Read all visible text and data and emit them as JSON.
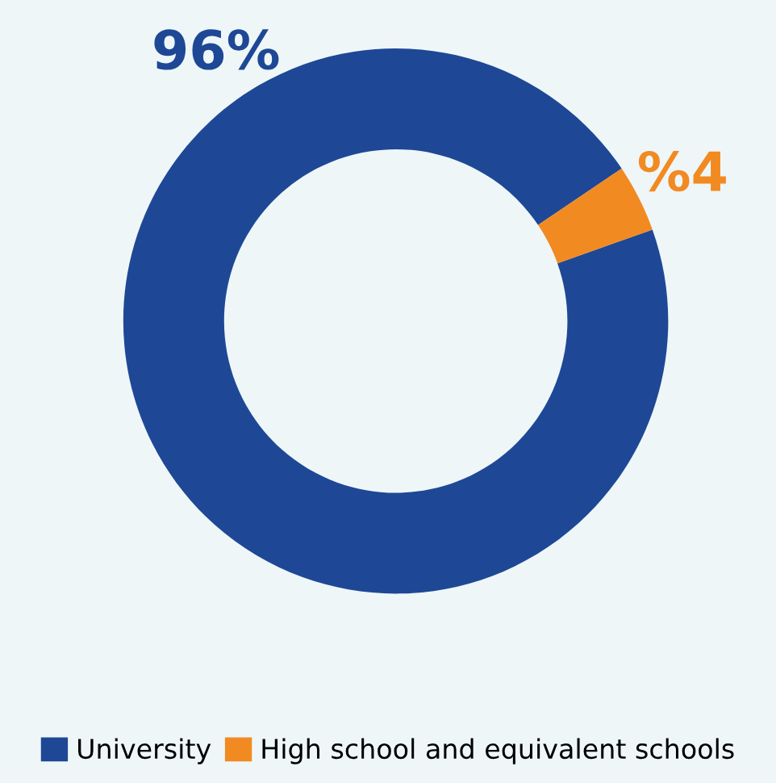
{
  "chart_data": {
    "type": "donut",
    "categories": [
      "University",
      "High school and equivalent schools"
    ],
    "values": [
      96,
      4
    ],
    "colors": [
      "#1e4896",
      "#f28a22"
    ],
    "value_labels": [
      "96%",
      "%4"
    ],
    "legend": "bottom"
  }
}
